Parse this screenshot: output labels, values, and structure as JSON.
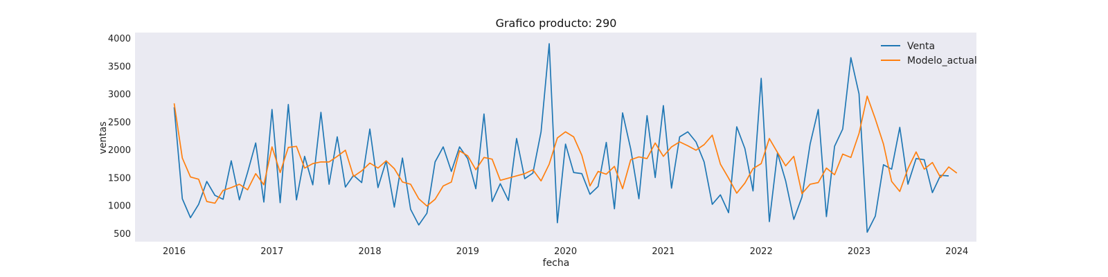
{
  "chart_data": {
    "type": "line",
    "title": "Grafico producto: 290",
    "xlabel": "fecha",
    "ylabel": "ventas",
    "xlim": [
      2015.6,
      2024.2
    ],
    "ylim": [
      350,
      4100
    ],
    "x_ticks": [
      2016,
      2017,
      2018,
      2019,
      2020,
      2021,
      2022,
      2023,
      2024
    ],
    "y_ticks": [
      500,
      1000,
      1500,
      2000,
      2500,
      3000,
      3500,
      4000
    ],
    "grid": false,
    "legend_position": "top-right",
    "background_color": "#eaeaf2",
    "x_start_year": 2016,
    "x_step_months": 1,
    "series": [
      {
        "name": "Venta",
        "color": "#1f77b4",
        "values": [
          2760,
          1120,
          780,
          1020,
          1430,
          1180,
          1110,
          1800,
          1100,
          1590,
          2120,
          1060,
          2720,
          1050,
          2810,
          1100,
          1880,
          1370,
          2670,
          1380,
          2230,
          1330,
          1540,
          1410,
          2370,
          1320,
          1800,
          970,
          1850,
          930,
          650,
          860,
          1780,
          2050,
          1610,
          2050,
          1840,
          1300,
          2640,
          1070,
          1390,
          1090,
          2200,
          1480,
          1580,
          2320,
          3900,
          690,
          2100,
          1590,
          1570,
          1200,
          1340,
          2130,
          940,
          2660,
          2010,
          1120,
          2610,
          1500,
          2790,
          1310,
          2230,
          2320,
          2140,
          1780,
          1020,
          1190,
          870,
          2410,
          2020,
          1260,
          3280,
          710,
          1940,
          1440,
          750,
          1150,
          2100,
          2720,
          800,
          2060,
          2370,
          3650,
          3000,
          520,
          810,
          1730,
          1650,
          2400,
          1380,
          1840,
          1820,
          1230,
          1540,
          1530
        ]
      },
      {
        "name": "Modelo_actual",
        "color": "#ff7f0e",
        "values": [
          2830,
          1850,
          1510,
          1470,
          1070,
          1040,
          1270,
          1320,
          1380,
          1280,
          1570,
          1370,
          2050,
          1590,
          2040,
          2060,
          1670,
          1750,
          1780,
          1780,
          1880,
          1990,
          1520,
          1620,
          1760,
          1670,
          1800,
          1660,
          1420,
          1380,
          1120,
          990,
          1110,
          1350,
          1420,
          1980,
          1890,
          1640,
          1860,
          1830,
          1450,
          1490,
          1530,
          1570,
          1640,
          1440,
          1740,
          2210,
          2320,
          2230,
          1900,
          1350,
          1610,
          1560,
          1700,
          1300,
          1820,
          1870,
          1840,
          2120,
          1880,
          2050,
          2140,
          2070,
          1990,
          2090,
          2260,
          1740,
          1490,
          1220,
          1400,
          1660,
          1750,
          2200,
          1950,
          1710,
          1880,
          1210,
          1380,
          1410,
          1670,
          1550,
          1920,
          1860,
          2290,
          2960,
          2550,
          2100,
          1430,
          1250,
          1660,
          1960,
          1650,
          1770,
          1500,
          1690,
          1580
        ]
      }
    ]
  }
}
